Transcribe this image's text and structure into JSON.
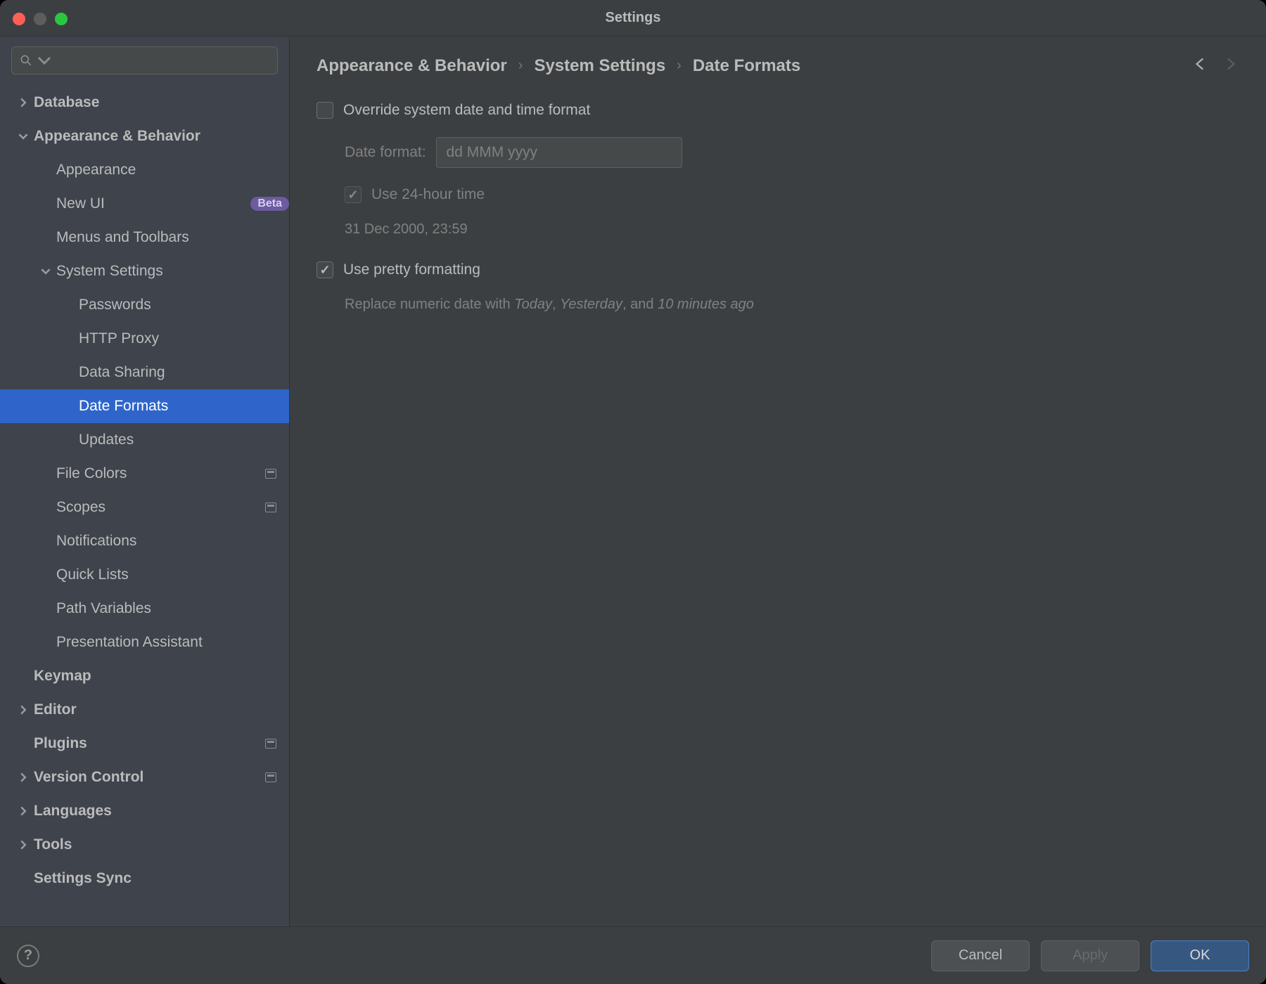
{
  "window": {
    "title": "Settings"
  },
  "colors": {
    "window_bg": "#3c3f41",
    "sidebar_bg": "#3e434c",
    "selected_bg": "#2f65ca",
    "text": "#bbbbbb",
    "text_dim": "#808080",
    "input_bg": "#45494a",
    "border": "#5e6060",
    "primary_btn_bg": "#365880",
    "primary_btn_border": "#4b82c9",
    "badge_bg": "#6c5b9e"
  },
  "sidebar": {
    "search_placeholder": "",
    "items": [
      {
        "label": "Database",
        "depth": 0,
        "bold": true,
        "chevron": "right"
      },
      {
        "label": "Appearance & Behavior",
        "depth": 0,
        "bold": true,
        "chevron": "down"
      },
      {
        "label": "Appearance",
        "depth": 1
      },
      {
        "label": "New UI",
        "depth": 1,
        "badge": "Beta"
      },
      {
        "label": "Menus and Toolbars",
        "depth": 1
      },
      {
        "label": "System Settings",
        "depth": 1,
        "chevron": "down"
      },
      {
        "label": "Passwords",
        "depth": 2
      },
      {
        "label": "HTTP Proxy",
        "depth": 2
      },
      {
        "label": "Data Sharing",
        "depth": 2
      },
      {
        "label": "Date Formats",
        "depth": 2,
        "selected": true
      },
      {
        "label": "Updates",
        "depth": 2
      },
      {
        "label": "File Colors",
        "depth": 1,
        "tail_icon": true
      },
      {
        "label": "Scopes",
        "depth": 1,
        "tail_icon": true
      },
      {
        "label": "Notifications",
        "depth": 1
      },
      {
        "label": "Quick Lists",
        "depth": 1
      },
      {
        "label": "Path Variables",
        "depth": 1
      },
      {
        "label": "Presentation Assistant",
        "depth": 1
      },
      {
        "label": "Keymap",
        "depth": 0,
        "bold": true
      },
      {
        "label": "Editor",
        "depth": 0,
        "bold": true,
        "chevron": "right"
      },
      {
        "label": "Plugins",
        "depth": 0,
        "bold": true,
        "tail_icon": true
      },
      {
        "label": "Version Control",
        "depth": 0,
        "bold": true,
        "chevron": "right",
        "tail_icon": true
      },
      {
        "label": "Languages",
        "depth": 0,
        "bold": true,
        "chevron": "right"
      },
      {
        "label": "Tools",
        "depth": 0,
        "bold": true,
        "chevron": "right"
      },
      {
        "label": "Settings Sync",
        "depth": 0,
        "bold": true
      }
    ]
  },
  "breadcrumb": {
    "items": [
      "Appearance & Behavior",
      "System Settings",
      "Date Formats"
    ]
  },
  "panel": {
    "override_label": "Override system date and time format",
    "override_checked": false,
    "date_format_label": "Date format:",
    "date_format_value": "dd MMM yyyy",
    "use_24h_label": "Use 24-hour time",
    "use_24h_checked": true,
    "sample": "31 Dec 2000, 23:59",
    "pretty_label": "Use pretty formatting",
    "pretty_checked": true,
    "hint_prefix": "Replace numeric date with ",
    "hint_today": "Today",
    "hint_sep1": ", ",
    "hint_yesterday": "Yesterday",
    "hint_sep2": ", and ",
    "hint_ago": "10 minutes ago"
  },
  "footer": {
    "cancel": "Cancel",
    "apply": "Apply",
    "ok": "OK"
  }
}
